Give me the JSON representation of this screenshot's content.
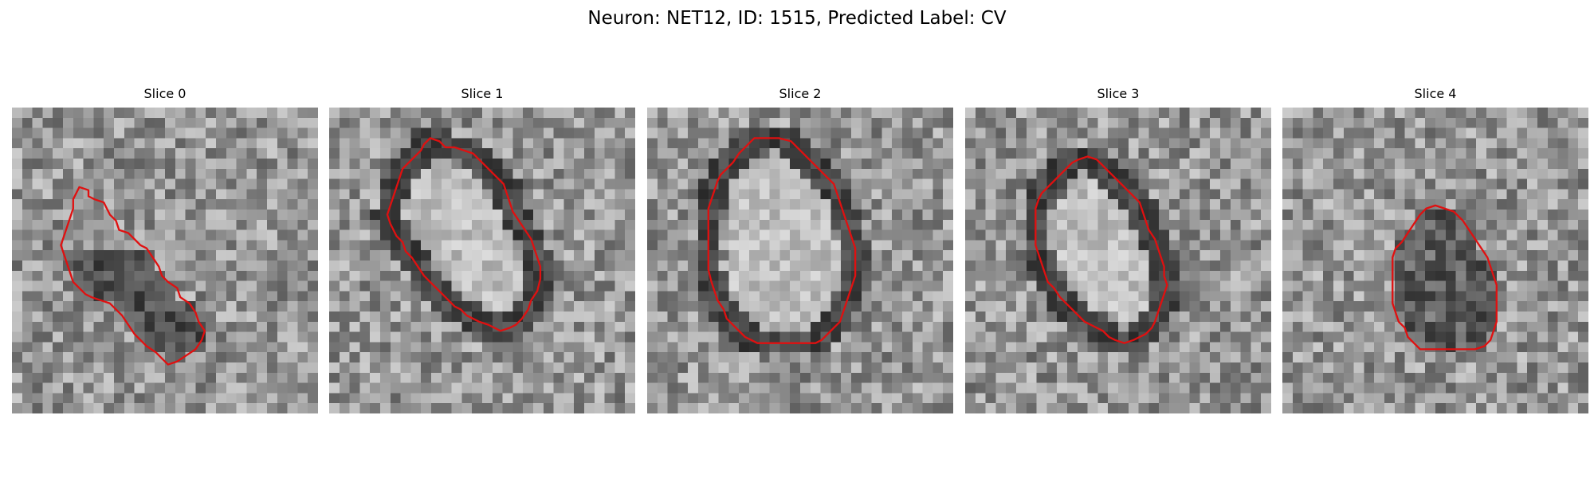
{
  "figure": {
    "title": "Neuron: NET12, ID: 1515, Predicted Label: CV"
  },
  "contour_color": "#e01010",
  "panels": [
    {
      "title": "Slice 0",
      "tone": "mixed",
      "contour": [
        [
          22,
          26
        ],
        [
          25,
          27
        ],
        [
          25,
          29
        ],
        [
          27,
          30
        ],
        [
          30,
          31
        ],
        [
          31,
          33
        ],
        [
          32,
          35
        ],
        [
          34,
          37
        ],
        [
          35,
          40
        ],
        [
          38,
          41
        ],
        [
          40,
          43
        ],
        [
          42,
          45
        ],
        [
          44,
          46
        ],
        [
          46,
          49
        ],
        [
          48,
          52
        ],
        [
          49,
          55
        ],
        [
          51,
          57
        ],
        [
          54,
          59
        ],
        [
          55,
          62
        ],
        [
          58,
          64
        ],
        [
          60,
          67
        ],
        [
          61,
          70
        ],
        [
          63,
          73
        ],
        [
          62,
          76
        ],
        [
          60,
          79
        ],
        [
          57,
          81
        ],
        [
          54,
          83
        ],
        [
          51,
          84
        ],
        [
          49,
          82
        ],
        [
          47,
          80
        ],
        [
          44,
          78
        ],
        [
          42,
          76
        ],
        [
          40,
          74
        ],
        [
          38,
          71
        ],
        [
          36,
          68
        ],
        [
          34,
          66
        ],
        [
          32,
          64
        ],
        [
          29,
          63
        ],
        [
          26,
          62
        ],
        [
          24,
          61
        ],
        [
          22,
          59
        ],
        [
          20,
          57
        ],
        [
          19,
          54
        ],
        [
          18,
          51
        ],
        [
          17,
          48
        ],
        [
          16,
          45
        ],
        [
          17,
          42
        ],
        [
          18,
          39
        ],
        [
          19,
          36
        ],
        [
          20,
          33
        ],
        [
          20,
          30
        ],
        [
          21,
          28
        ]
      ]
    },
    {
      "title": "Slice 1",
      "tone": "bright",
      "contour": [
        [
          33,
          10
        ],
        [
          36,
          11
        ],
        [
          38,
          13
        ],
        [
          41,
          13
        ],
        [
          44,
          14
        ],
        [
          47,
          15
        ],
        [
          49,
          17
        ],
        [
          51,
          19
        ],
        [
          53,
          21
        ],
        [
          55,
          23
        ],
        [
          57,
          25
        ],
        [
          58,
          28
        ],
        [
          59,
          31
        ],
        [
          60,
          34
        ],
        [
          62,
          37
        ],
        [
          64,
          40
        ],
        [
          66,
          43
        ],
        [
          67,
          46
        ],
        [
          68,
          49
        ],
        [
          69,
          52
        ],
        [
          69,
          56
        ],
        [
          68,
          60
        ],
        [
          66,
          63
        ],
        [
          65,
          66
        ],
        [
          63,
          69
        ],
        [
          61,
          71
        ],
        [
          59,
          72
        ],
        [
          56,
          73
        ],
        [
          54,
          72
        ],
        [
          52,
          71
        ],
        [
          49,
          70
        ],
        [
          47,
          69
        ],
        [
          45,
          68
        ],
        [
          43,
          66
        ],
        [
          41,
          65
        ],
        [
          39,
          63
        ],
        [
          37,
          61
        ],
        [
          35,
          59
        ],
        [
          33,
          57
        ],
        [
          31,
          55
        ],
        [
          29,
          52
        ],
        [
          27,
          49
        ],
        [
          25,
          47
        ],
        [
          24,
          44
        ],
        [
          22,
          42
        ],
        [
          21,
          40
        ],
        [
          20,
          38
        ],
        [
          19,
          35
        ],
        [
          20,
          32
        ],
        [
          21,
          29
        ],
        [
          22,
          26
        ],
        [
          23,
          23
        ],
        [
          24,
          20
        ],
        [
          26,
          18
        ],
        [
          28,
          16
        ],
        [
          30,
          14
        ],
        [
          31,
          12
        ]
      ]
    },
    {
      "title": "Slice 2",
      "tone": "bright",
      "contour": [
        [
          35,
          10
        ],
        [
          39,
          10
        ],
        [
          43,
          10
        ],
        [
          47,
          11
        ],
        [
          49,
          13
        ],
        [
          51,
          15
        ],
        [
          53,
          17
        ],
        [
          55,
          19
        ],
        [
          57,
          21
        ],
        [
          59,
          23
        ],
        [
          61,
          25
        ],
        [
          62,
          28
        ],
        [
          63,
          31
        ],
        [
          64,
          34
        ],
        [
          65,
          37
        ],
        [
          66,
          40
        ],
        [
          67,
          43
        ],
        [
          68,
          46
        ],
        [
          68,
          49
        ],
        [
          68,
          52
        ],
        [
          68,
          55
        ],
        [
          67,
          58
        ],
        [
          66,
          61
        ],
        [
          65,
          64
        ],
        [
          64,
          67
        ],
        [
          63,
          70
        ],
        [
          61,
          72
        ],
        [
          59,
          74
        ],
        [
          57,
          76
        ],
        [
          55,
          77
        ],
        [
          53,
          77
        ],
        [
          50,
          77
        ],
        [
          48,
          77
        ],
        [
          45,
          77
        ],
        [
          42,
          77
        ],
        [
          39,
          77
        ],
        [
          36,
          77
        ],
        [
          34,
          76
        ],
        [
          32,
          75
        ],
        [
          30,
          73
        ],
        [
          28,
          71
        ],
        [
          26,
          69
        ],
        [
          25,
          66
        ],
        [
          23,
          63
        ],
        [
          22,
          60
        ],
        [
          21,
          57
        ],
        [
          20,
          53
        ],
        [
          20,
          49
        ],
        [
          20,
          45
        ],
        [
          20,
          41
        ],
        [
          20,
          37
        ],
        [
          20,
          33
        ],
        [
          21,
          30
        ],
        [
          22,
          27
        ],
        [
          23,
          24
        ],
        [
          24,
          22
        ],
        [
          26,
          20
        ],
        [
          28,
          18
        ],
        [
          30,
          15
        ],
        [
          32,
          13
        ],
        [
          34,
          11
        ]
      ]
    },
    {
      "title": "Slice 3",
      "tone": "bright",
      "contour": [
        [
          40,
          16
        ],
        [
          43,
          17
        ],
        [
          45,
          19
        ],
        [
          47,
          21
        ],
        [
          49,
          23
        ],
        [
          51,
          25
        ],
        [
          53,
          27
        ],
        [
          55,
          29
        ],
        [
          57,
          31
        ],
        [
          58,
          34
        ],
        [
          59,
          37
        ],
        [
          60,
          40
        ],
        [
          62,
          43
        ],
        [
          63,
          46
        ],
        [
          64,
          49
        ],
        [
          65,
          52
        ],
        [
          65,
          55
        ],
        [
          66,
          58
        ],
        [
          65,
          61
        ],
        [
          64,
          64
        ],
        [
          63,
          67
        ],
        [
          62,
          70
        ],
        [
          61,
          72
        ],
        [
          59,
          74
        ],
        [
          57,
          75
        ],
        [
          55,
          76
        ],
        [
          52,
          77
        ],
        [
          49,
          76
        ],
        [
          47,
          75
        ],
        [
          45,
          73
        ],
        [
          43,
          72
        ],
        [
          41,
          71
        ],
        [
          39,
          70
        ],
        [
          37,
          68
        ],
        [
          35,
          66
        ],
        [
          33,
          64
        ],
        [
          31,
          62
        ],
        [
          29,
          59
        ],
        [
          27,
          57
        ],
        [
          26,
          54
        ],
        [
          25,
          51
        ],
        [
          24,
          48
        ],
        [
          23,
          45
        ],
        [
          23,
          42
        ],
        [
          23,
          39
        ],
        [
          23,
          36
        ],
        [
          23,
          33
        ],
        [
          24,
          30
        ],
        [
          25,
          28
        ],
        [
          27,
          26
        ],
        [
          29,
          24
        ],
        [
          31,
          22
        ],
        [
          33,
          20
        ],
        [
          35,
          18
        ],
        [
          37,
          17
        ]
      ]
    },
    {
      "title": "Slice 4",
      "tone": "dark",
      "contour": [
        [
          50,
          32
        ],
        [
          53,
          33
        ],
        [
          56,
          34
        ],
        [
          59,
          37
        ],
        [
          61,
          40
        ],
        [
          63,
          43
        ],
        [
          65,
          46
        ],
        [
          67,
          49
        ],
        [
          68,
          52
        ],
        [
          69,
          55
        ],
        [
          70,
          58
        ],
        [
          70,
          61
        ],
        [
          70,
          64
        ],
        [
          70,
          67
        ],
        [
          70,
          70
        ],
        [
          69,
          73
        ],
        [
          68,
          76
        ],
        [
          66,
          78
        ],
        [
          63,
          79
        ],
        [
          60,
          79
        ],
        [
          57,
          79
        ],
        [
          54,
          79
        ],
        [
          51,
          79
        ],
        [
          48,
          79
        ],
        [
          45,
          79
        ],
        [
          43,
          77
        ],
        [
          41,
          75
        ],
        [
          40,
          72
        ],
        [
          38,
          70
        ],
        [
          37,
          67
        ],
        [
          36,
          64
        ],
        [
          36,
          61
        ],
        [
          36,
          58
        ],
        [
          36,
          55
        ],
        [
          36,
          52
        ],
        [
          36,
          49
        ],
        [
          37,
          46
        ],
        [
          39,
          44
        ],
        [
          41,
          41
        ],
        [
          43,
          38
        ],
        [
          45,
          35
        ],
        [
          47,
          33
        ]
      ]
    }
  ]
}
